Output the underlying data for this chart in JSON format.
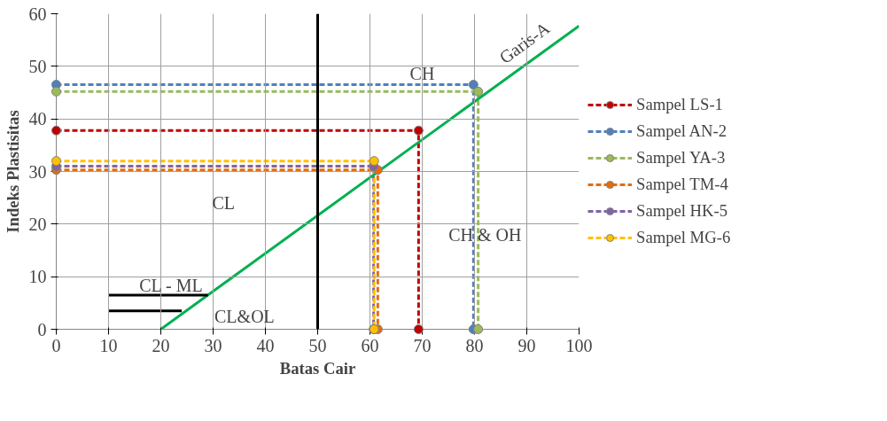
{
  "chart_data": {
    "type": "line",
    "xlabel": "Batas Cair",
    "ylabel": "Indeks Plastisitas",
    "xlim": [
      0,
      100
    ],
    "xticks": [
      0,
      10,
      20,
      30,
      40,
      50,
      60,
      70,
      80,
      90,
      100
    ],
    "ylim": [
      0,
      60
    ],
    "yticks": [
      0,
      10,
      20,
      30,
      40,
      50,
      60
    ],
    "grid": true,
    "legend": "right",
    "marker": "circle",
    "line_style": "dashed",
    "series": [
      {
        "name": "Sampel LS-1",
        "color": "#c00000",
        "x": [
          0,
          69.3,
          69.3
        ],
        "values": [
          37.8,
          37.8,
          0
        ]
      },
      {
        "name": "Sampel AN-2",
        "color": "#4f81bd",
        "x": [
          0,
          79.8,
          79.8
        ],
        "values": [
          46.5,
          46.5,
          0
        ]
      },
      {
        "name": "Sampel YA-3",
        "color": "#9bbb59",
        "x": [
          0,
          80.7,
          80.7
        ],
        "values": [
          45.2,
          45.2,
          0
        ]
      },
      {
        "name": "Sampel TM-4",
        "color": "#e46c0a",
        "x": [
          0,
          61.5,
          61.5
        ],
        "values": [
          30.3,
          30.3,
          0
        ]
      },
      {
        "name": "Sampel HK-5",
        "color": "#8064a2",
        "x": [
          0,
          60.7,
          60.7
        ],
        "values": [
          31,
          31,
          0
        ]
      },
      {
        "name": "Sampel MG-6",
        "color": "#ffc000",
        "x": [
          0,
          60.8,
          60.8
        ],
        "values": [
          32,
          32,
          0
        ]
      },
      {
        "color": "#00b050",
        "x": [
          20,
          100
        ],
        "values": [
          0,
          57.7
        ],
        "line_style": "solid",
        "marker": "none"
      },
      {
        "color": "#000000",
        "x": [
          10,
          29
        ],
        "values": [
          6.5,
          6.5
        ],
        "line_style": "solid",
        "marker": "none"
      },
      {
        "color": "#000000",
        "x": [
          10,
          24
        ],
        "values": [
          3.5,
          3.5
        ],
        "line_style": "solid",
        "marker": "none"
      }
    ],
    "ref_lines": [
      {
        "axis": "x",
        "value": 50,
        "color": "#000000",
        "line_style": "solid"
      }
    ],
    "annotations": [
      {
        "text": "Garis-A",
        "x": 92,
        "y": 52
      },
      "CH",
      "CL",
      "CH & OH",
      "CL&OL",
      "CL - ML"
    ]
  }
}
